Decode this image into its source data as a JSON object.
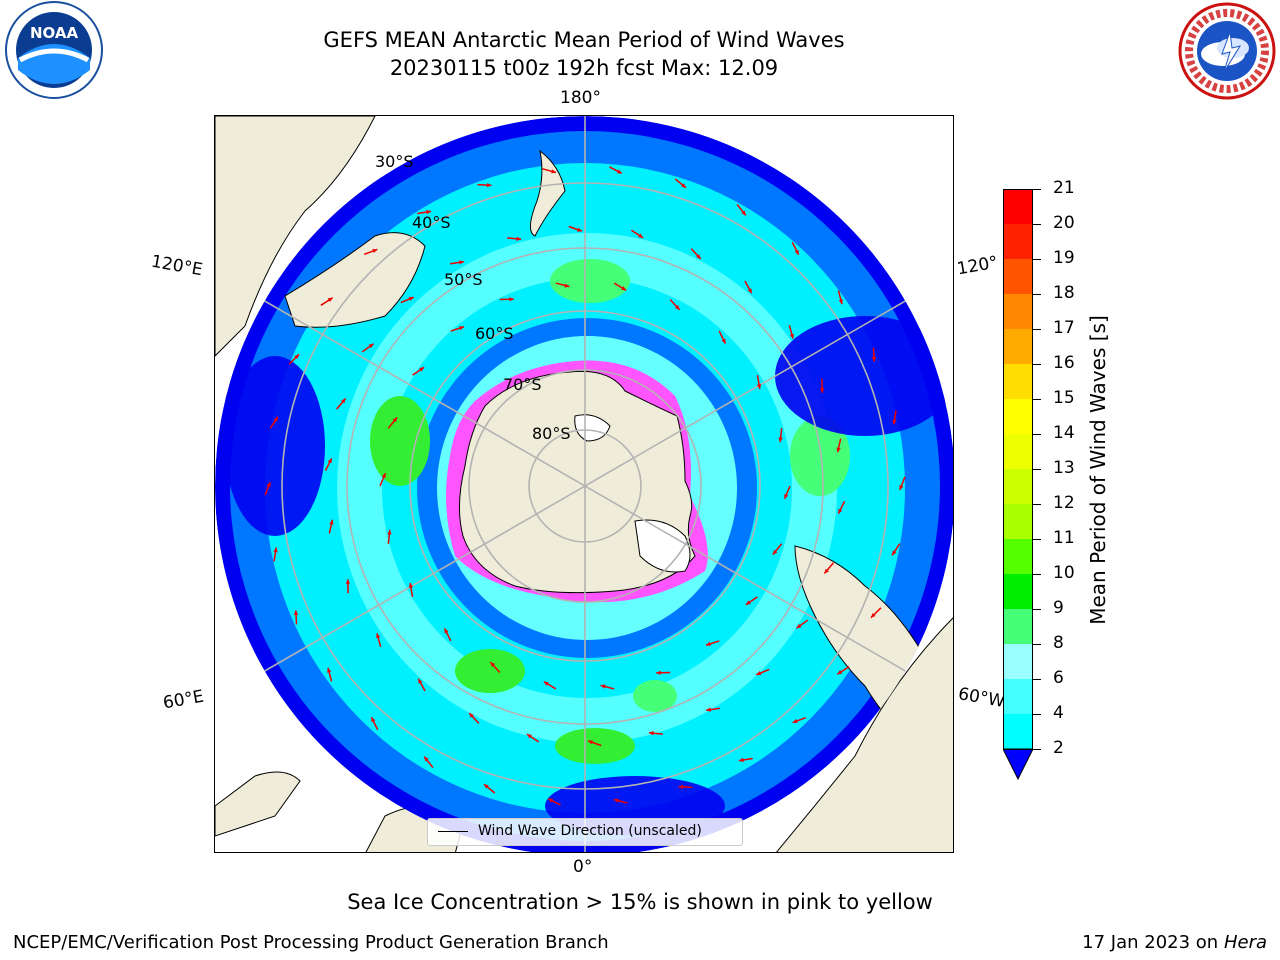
{
  "header": {
    "title_line1": "GEFS MEAN Antarctic Mean Period of Wind Waves",
    "title_line2": "20230115 t00z 192h fcst   Max: 12.09"
  },
  "logos": {
    "left": {
      "icon": "noaa-logo-icon",
      "text": "NOAA"
    },
    "right": {
      "icon": "nws-logo-icon"
    }
  },
  "map": {
    "projection": "south-polar-stereographic",
    "longitude_labels": {
      "top": "180°",
      "bottom": "0°",
      "left_upper": "120°E",
      "left_lower": "60°E",
      "right_upper": "120°",
      "right_lower": "60°W"
    },
    "latitude_labels": [
      "30°S",
      "40°S",
      "50°S",
      "60°S",
      "70°S",
      "80°S"
    ],
    "colors": {
      "land": "#efedd9",
      "deep_blue": "#0000f5",
      "blue": "#0077ff",
      "cyan": "#00f0ff",
      "light_cyan": "#66ffff",
      "green": "#33ff33",
      "ice_pink": "#ff55ff",
      "arrow": "#ee0000"
    }
  },
  "legend": {
    "label": "Wind Wave Direction (unscaled)"
  },
  "colorbar": {
    "label": "Mean Period of Wind Waves [s]",
    "ticks": [
      "2",
      "4",
      "6",
      "8",
      "9",
      "10",
      "11",
      "12",
      "13",
      "14",
      "15",
      "16",
      "17",
      "18",
      "19",
      "20",
      "21"
    ],
    "colors": [
      "#0077ff",
      "#00ffff",
      "#44ffff",
      "#99ffff",
      "#44ff77",
      "#00ee00",
      "#55ff00",
      "#aaff00",
      "#ccff00",
      "#eeff00",
      "#ffff00",
      "#ffdd00",
      "#ffaa00",
      "#ff8800",
      "#ff5500",
      "#ff2200",
      "#ff0000"
    ],
    "extend_color": "#0000ff"
  },
  "note": "Sea Ice Concentration > 15% is shown in pink to yellow",
  "footer": {
    "left": "NCEP/EMC/Verification Post Processing Product Generation Branch",
    "right_prefix": "17 Jan 2023 on ",
    "right_host": "Hera"
  }
}
